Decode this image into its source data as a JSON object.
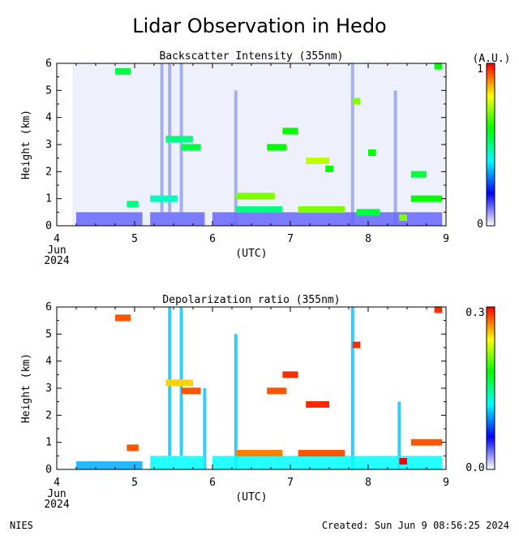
{
  "page_title": "Lidar Observation in Hedo",
  "footer": {
    "left": "NIES",
    "right": "Created: Sun Jun  9 08:56:25 2024"
  },
  "chart_data": [
    {
      "type": "heatmap",
      "title": "Backscatter Intensity (355nm)",
      "ylabel": "Height (km)",
      "xlabel": "(UTC)",
      "x_ticks": [
        "4",
        "5",
        "6",
        "7",
        "8",
        "9"
      ],
      "x_sub": [
        "Jun",
        "2024"
      ],
      "xlim": [
        4,
        9
      ],
      "y_ticks": [
        "0",
        "1",
        "2",
        "3",
        "4",
        "5",
        "6"
      ],
      "ylim": [
        0,
        6
      ],
      "colorbar": {
        "unit": "(A.U.)",
        "min_label": "0",
        "max_label": "1",
        "colors": [
          "#ffffff",
          "#0000ff",
          "#00ffff",
          "#00ff00",
          "#ffff00",
          "#ff0000"
        ]
      },
      "boundary_layer": [
        {
          "x0": 4.25,
          "x1": 5.1,
          "y": 0.5,
          "v": 0.15
        },
        {
          "x0": 5.2,
          "x1": 5.9,
          "y": 0.5,
          "v": 0.15
        },
        {
          "x0": 6.0,
          "x1": 8.95,
          "y": 0.5,
          "v": 0.15
        }
      ],
      "layers": [
        {
          "x0": 4.75,
          "x1": 4.95,
          "y": 5.7,
          "v": 0.55
        },
        {
          "x0": 4.9,
          "x1": 5.05,
          "y": 0.8,
          "v": 0.5
        },
        {
          "x0": 5.2,
          "x1": 5.55,
          "y": 1.0,
          "v": 0.45
        },
        {
          "x0": 5.4,
          "x1": 5.75,
          "y": 3.2,
          "v": 0.5
        },
        {
          "x0": 5.6,
          "x1": 5.85,
          "y": 2.9,
          "v": 0.55
        },
        {
          "x0": 6.3,
          "x1": 6.9,
          "y": 0.6,
          "v": 0.5
        },
        {
          "x0": 6.3,
          "x1": 6.8,
          "y": 1.1,
          "v": 0.7
        },
        {
          "x0": 6.7,
          "x1": 6.95,
          "y": 2.9,
          "v": 0.6
        },
        {
          "x0": 6.9,
          "x1": 7.1,
          "y": 3.5,
          "v": 0.6
        },
        {
          "x0": 7.1,
          "x1": 7.7,
          "y": 0.6,
          "v": 0.7
        },
        {
          "x0": 7.2,
          "x1": 7.5,
          "y": 2.4,
          "v": 0.75
        },
        {
          "x0": 7.45,
          "x1": 7.55,
          "y": 2.1,
          "v": 0.6
        },
        {
          "x0": 7.85,
          "x1": 8.15,
          "y": 0.5,
          "v": 0.55
        },
        {
          "x0": 7.8,
          "x1": 7.9,
          "y": 4.6,
          "v": 0.7
        },
        {
          "x0": 8.0,
          "x1": 8.1,
          "y": 2.7,
          "v": 0.6
        },
        {
          "x0": 8.4,
          "x1": 8.5,
          "y": 0.3,
          "v": 0.7
        },
        {
          "x0": 8.55,
          "x1": 8.95,
          "y": 1.0,
          "v": 0.6
        },
        {
          "x0": 8.55,
          "x1": 8.75,
          "y": 1.9,
          "v": 0.55
        },
        {
          "x0": 8.85,
          "x1": 8.95,
          "y": 5.9,
          "v": 0.6
        }
      ],
      "columns": [
        {
          "x": 5.35,
          "y0": 0.5,
          "y1": 6.0
        },
        {
          "x": 5.45,
          "y0": 0.5,
          "y1": 6.0
        },
        {
          "x": 5.6,
          "y0": 0.5,
          "y1": 6.0
        },
        {
          "x": 6.3,
          "y0": 0.0,
          "y1": 5.0
        },
        {
          "x": 7.8,
          "y0": 0.0,
          "y1": 6.0
        },
        {
          "x": 8.35,
          "y0": 0.0,
          "y1": 5.0
        }
      ]
    },
    {
      "type": "heatmap",
      "title": "Depolarization ratio (355nm)",
      "ylabel": "Height (km)",
      "xlabel": "(UTC)",
      "x_ticks": [
        "4",
        "5",
        "6",
        "7",
        "8",
        "9"
      ],
      "x_sub": [
        "Jun",
        "2024"
      ],
      "xlim": [
        4,
        9
      ],
      "y_ticks": [
        "0",
        "1",
        "2",
        "3",
        "4",
        "5",
        "6"
      ],
      "ylim": [
        0,
        6
      ],
      "colorbar": {
        "min_label": "0.0",
        "max_label": "0.3",
        "colors": [
          "#ffffff",
          "#0000ff",
          "#00ffff",
          "#00ff00",
          "#ffff00",
          "#ff0000"
        ]
      },
      "boundary_layer": [
        {
          "x0": 4.25,
          "x1": 5.1,
          "y": 0.3,
          "v": 0.1
        },
        {
          "x0": 5.2,
          "x1": 5.9,
          "y": 0.5,
          "v": 0.12
        },
        {
          "x0": 6.0,
          "x1": 8.95,
          "y": 0.5,
          "v": 0.12
        }
      ],
      "layers": [
        {
          "x0": 4.75,
          "x1": 4.95,
          "y": 5.6,
          "v": 0.28
        },
        {
          "x0": 4.9,
          "x1": 5.05,
          "y": 0.8,
          "v": 0.28
        },
        {
          "x0": 5.4,
          "x1": 5.75,
          "y": 3.2,
          "v": 0.25
        },
        {
          "x0": 5.6,
          "x1": 5.85,
          "y": 2.9,
          "v": 0.28
        },
        {
          "x0": 6.3,
          "x1": 6.9,
          "y": 0.6,
          "v": 0.27
        },
        {
          "x0": 6.7,
          "x1": 6.95,
          "y": 2.9,
          "v": 0.28
        },
        {
          "x0": 6.9,
          "x1": 7.1,
          "y": 3.5,
          "v": 0.29
        },
        {
          "x0": 7.1,
          "x1": 7.7,
          "y": 0.6,
          "v": 0.28
        },
        {
          "x0": 7.2,
          "x1": 7.5,
          "y": 2.4,
          "v": 0.29
        },
        {
          "x0": 7.8,
          "x1": 7.9,
          "y": 4.6,
          "v": 0.29
        },
        {
          "x0": 8.4,
          "x1": 8.5,
          "y": 0.3,
          "v": 0.3
        },
        {
          "x0": 8.55,
          "x1": 8.95,
          "y": 1.0,
          "v": 0.28
        },
        {
          "x0": 8.85,
          "x1": 8.95,
          "y": 5.9,
          "v": 0.29
        }
      ],
      "columns": [
        {
          "x": 5.45,
          "y0": 0.5,
          "y1": 6.0
        },
        {
          "x": 5.6,
          "y0": 0.5,
          "y1": 6.0
        },
        {
          "x": 5.9,
          "y0": 0.0,
          "y1": 3.0
        },
        {
          "x": 6.3,
          "y0": 0.0,
          "y1": 5.0
        },
        {
          "x": 7.8,
          "y0": 0.0,
          "y1": 6.0
        },
        {
          "x": 8.4,
          "y0": 0.0,
          "y1": 2.5
        }
      ]
    }
  ]
}
